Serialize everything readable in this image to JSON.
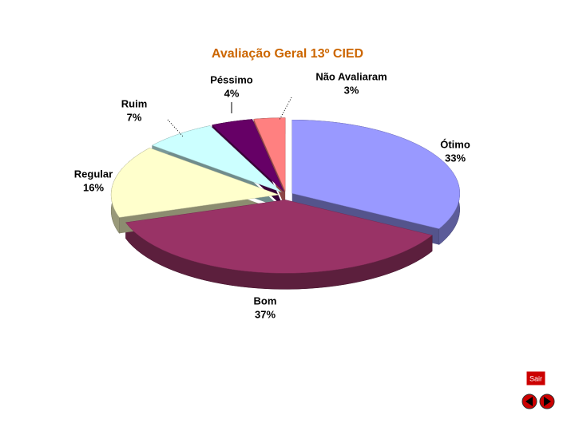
{
  "chart_data": {
    "type": "pie",
    "title": "Avaliação Geral 13º CIED",
    "categories": [
      "Ótimo",
      "Bom",
      "Regular",
      "Ruim",
      "Péssimo",
      "Não Avaliaram"
    ],
    "values": [
      33,
      37,
      16,
      7,
      4,
      3
    ],
    "value_labels": [
      "33%",
      "37%",
      "16%",
      "7%",
      "4%",
      "3%"
    ],
    "colors": [
      "#9999ff",
      "#993366",
      "#ffffcc",
      "#ccffff",
      "#660066",
      "#ff8080"
    ]
  },
  "navigation": {
    "exit": "Sair"
  }
}
